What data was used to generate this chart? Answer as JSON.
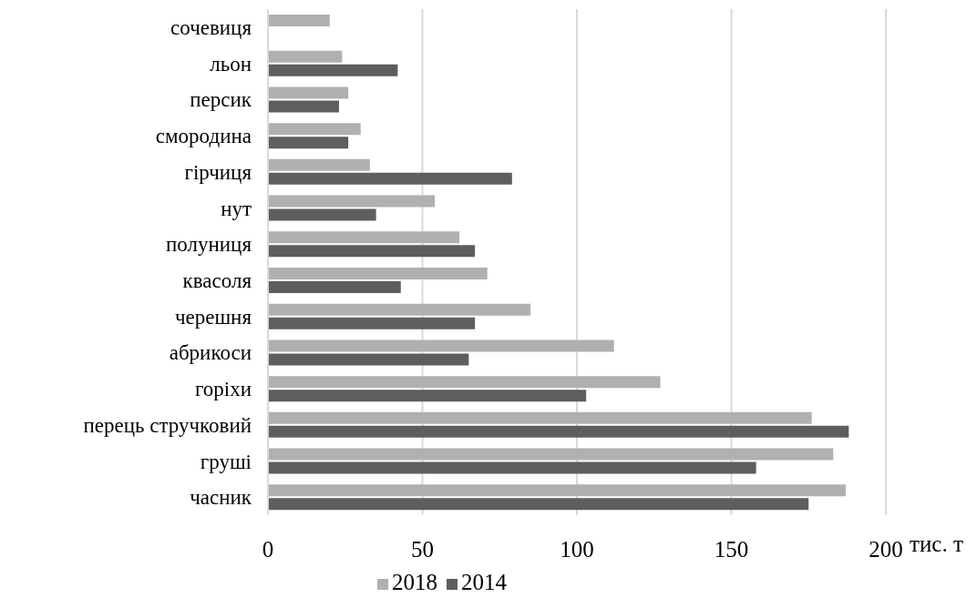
{
  "chart_data": {
    "type": "bar",
    "orientation": "horizontal",
    "xlabel": "тис. т",
    "categories": [
      "сочевиця",
      "льон",
      "персик",
      "смородина",
      "гірчиця",
      "нут",
      "полуниця",
      "квасоля",
      "черешня",
      "абрикоси",
      "горіхи",
      "перець стручковий",
      "груші",
      "часник"
    ],
    "series": [
      {
        "name": "2018",
        "color": "#b0b0b0",
        "values": [
          20,
          24,
          26,
          30,
          33,
          54,
          62,
          71,
          85,
          112,
          127,
          176,
          183,
          187
        ]
      },
      {
        "name": "2014",
        "color": "#5e5e5e",
        "values": [
          0,
          42,
          23,
          26,
          79,
          35,
          67,
          43,
          67,
          65,
          103,
          188,
          158,
          175
        ]
      }
    ],
    "xlim": [
      0,
      200
    ],
    "xticks": [
      0,
      50,
      100,
      150,
      200
    ],
    "grid": "x",
    "legend": "bottom"
  }
}
